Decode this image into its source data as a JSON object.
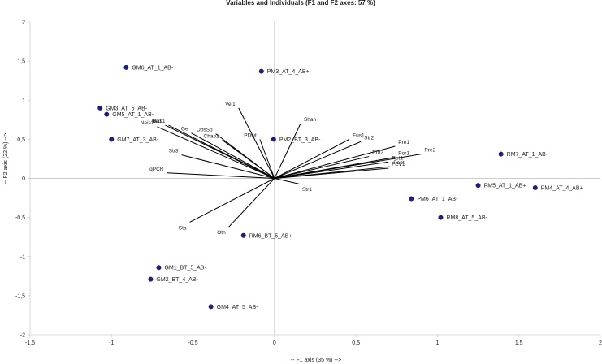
{
  "chart_data": {
    "type": "scatter",
    "title": "Variables and Individuals (F1 and F2 axes: 57 %)",
    "xlabel": "-- F1 axis (35 %) -->",
    "ylabel": "-- F2 axis (22 %) -->",
    "xlim": [
      -1.5,
      2
    ],
    "ylim": [
      -2,
      2
    ],
    "x_ticks": [
      "-1,5",
      "-1",
      "-0,5",
      "0",
      "0,5",
      "1",
      "1,5",
      "2"
    ],
    "x_tick_values": [
      -1.5,
      -1,
      -0.5,
      0,
      0.5,
      1,
      1.5,
      2
    ],
    "y_ticks": [
      "2",
      "1,5",
      "1",
      "0,5",
      "0",
      "-0,5",
      "-1",
      "-1,5",
      "-2"
    ],
    "y_tick_values": [
      2,
      1.5,
      1,
      0.5,
      0,
      -0.5,
      -1,
      -1.5,
      -2
    ],
    "grid": false,
    "point_color": "#1f1f7a",
    "vector_color": "#000000",
    "individuals": [
      {
        "label": "GM6_AT_1_AB-",
        "x": -0.91,
        "y": 1.42
      },
      {
        "label": "PM3_AT_4_AB+",
        "x": -0.08,
        "y": 1.37
      },
      {
        "label": "GM3_AT_5_AB-",
        "x": -1.07,
        "y": 0.9
      },
      {
        "label": "GM5_AT_1_AB-",
        "x": -1.03,
        "y": 0.82
      },
      {
        "label": "GM7_AT_3_AB-",
        "x": -1.0,
        "y": 0.5
      },
      {
        "label": "PM2_BT_3_AB-",
        "x": -0.005,
        "y": 0.5
      },
      {
        "label": "RM7_AT_1_AB-",
        "x": 1.39,
        "y": 0.31
      },
      {
        "label": "PM5_AT_1_AB+",
        "x": 1.25,
        "y": -0.09
      },
      {
        "label": "PM4_AT_4_AB+",
        "x": 1.6,
        "y": -0.12
      },
      {
        "label": "PM6_AT_1_AB-",
        "x": 0.84,
        "y": -0.26
      },
      {
        "label": "RM8_AT_5_AB-",
        "x": 1.02,
        "y": -0.5
      },
      {
        "label": "RM6_BT_5_AB+",
        "x": -0.19,
        "y": -0.73
      },
      {
        "label": "GM1_BT_5_AB-",
        "x": -0.71,
        "y": -1.14
      },
      {
        "label": "GM2_BT_4_AB-",
        "x": -0.76,
        "y": -1.29
      },
      {
        "label": "GM4_AT_5_AB-",
        "x": -0.39,
        "y": -1.64
      }
    ],
    "variables": [
      {
        "label": "Vei1",
        "x": -0.22,
        "y": 0.9
      },
      {
        "label": "Shan",
        "x": 0.16,
        "y": 0.7
      },
      {
        "label": "Ha1",
        "x": -0.67,
        "y": 0.68
      },
      {
        "label": "Neis1",
        "x": -0.65,
        "y": 0.68
      },
      {
        "label": "Neis2",
        "x": -0.72,
        "y": 0.66
      },
      {
        "label": "Ge",
        "x": -0.51,
        "y": 0.58
      },
      {
        "label": "ObsSp",
        "x": -0.36,
        "y": 0.57
      },
      {
        "label": "Chao1",
        "x": -0.32,
        "y": 0.49
      },
      {
        "label": "PDwt",
        "x": -0.09,
        "y": 0.5
      },
      {
        "label": "Fus1",
        "x": 0.46,
        "y": 0.5
      },
      {
        "label": "Str2",
        "x": 0.53,
        "y": 0.47
      },
      {
        "label": "Pre1",
        "x": 0.74,
        "y": 0.41
      },
      {
        "label": "Rot2",
        "x": 0.58,
        "y": 0.28
      },
      {
        "label": "Por1",
        "x": 0.74,
        "y": 0.27
      },
      {
        "label": "Rot1",
        "x": 0.7,
        "y": 0.21
      },
      {
        "label": "Pre2",
        "x": 0.9,
        "y": 0.31
      },
      {
        "label": "Pept",
        "x": 0.71,
        "y": 0.15
      },
      {
        "label": "FEV1",
        "x": 0.7,
        "y": 0.13
      },
      {
        "label": "Str3",
        "x": -0.57,
        "y": 0.3
      },
      {
        "label": "qPCR",
        "x": -0.66,
        "y": 0.07
      },
      {
        "label": "Str1",
        "x": 0.15,
        "y": -0.07
      },
      {
        "label": "Sta",
        "x": -0.52,
        "y": -0.56
      },
      {
        "label": "Oth",
        "x": -0.28,
        "y": -0.62
      }
    ]
  }
}
